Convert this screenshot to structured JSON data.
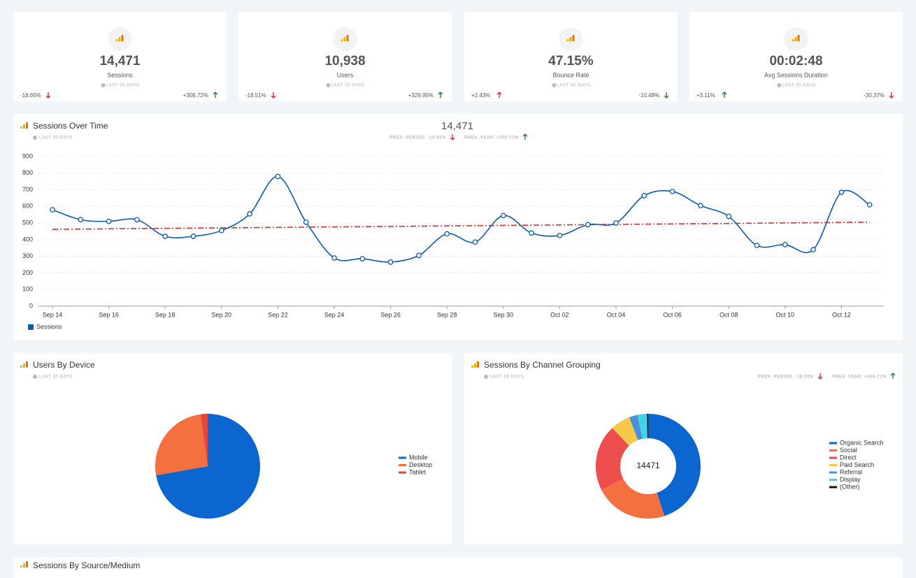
{
  "cards": [
    {
      "value": "14,471",
      "label": "Sessions",
      "period": "LAST 30 DAYS",
      "left": {
        "text": "-18.65%",
        "arrow": "down",
        "color": "#d32f2f"
      },
      "right": {
        "text": "+306.72%",
        "arrow": "up",
        "color": "#2e7d32"
      }
    },
    {
      "value": "10,938",
      "label": "Users",
      "period": "LAST 30 DAYS",
      "left": {
        "text": "-18.51%",
        "arrow": "down",
        "color": "#d32f2f"
      },
      "right": {
        "text": "+329.95%",
        "arrow": "up",
        "color": "#2e7d32"
      }
    },
    {
      "value": "47.15%",
      "label": "Bounce Rate",
      "period": "LAST 30 DAYS",
      "left": {
        "text": "+2.43%",
        "arrow": "up",
        "color": "#d32f2f"
      },
      "right": {
        "text": "-10.48%",
        "arrow": "down",
        "color": "#2e7d32"
      }
    },
    {
      "value": "00:02:48",
      "label": "Avg Sessions Duration",
      "period": "LAST 30 DAYS",
      "left": {
        "text": "+3.11%",
        "arrow": "up",
        "color": "#2e7d32"
      },
      "right": {
        "text": "-30.37%",
        "arrow": "down",
        "color": "#d32f2f"
      }
    }
  ],
  "chart_data": [
    {
      "type": "line",
      "title": "Sessions Over Time",
      "subtitle": "LAST 30 DAYS",
      "total": "14,471",
      "stats": [
        {
          "text": "PREV. PERIOD: -18.65%",
          "arrow": "down",
          "color": "#d32f2f"
        },
        {
          "text": "PREV. YEAR: +306.72%",
          "arrow": "up",
          "color": "#2e7d32"
        }
      ],
      "categories": [
        "Sep 14",
        null,
        "Sep 16",
        null,
        "Sep 18",
        null,
        "Sep 20",
        null,
        "Sep 22",
        null,
        "Sep 24",
        null,
        "Sep 26",
        null,
        "Sep 28",
        null,
        "Sep 30",
        null,
        "Oct 02",
        null,
        "Oct 04",
        null,
        "Oct 06",
        null,
        "Oct 08",
        null,
        "Oct 10",
        null,
        "Oct 12",
        null
      ],
      "series": [
        {
          "name": "Sessions",
          "color": "#0b5cad",
          "values": [
            580,
            520,
            510,
            520,
            420,
            420,
            455,
            555,
            780,
            505,
            290,
            285,
            265,
            305,
            435,
            385,
            545,
            440,
            425,
            490,
            500,
            665,
            690,
            605,
            540,
            365,
            370,
            340,
            685,
            610
          ]
        }
      ],
      "trendline": {
        "values": [
          462,
          505
        ],
        "color": "#d32f2f"
      },
      "ylim": [
        0,
        900
      ],
      "yticks": [
        0,
        100,
        200,
        300,
        400,
        500,
        600,
        700,
        800,
        900
      ],
      "grid": true
    },
    {
      "type": "pie",
      "title": "Users By Device",
      "subtitle": "LAST 30 DAYS",
      "categories": [
        "Mobile",
        "Desktop",
        "Tablet"
      ],
      "values": [
        72.2,
        25.6,
        2.2
      ],
      "colors": [
        "#0b66d0",
        "#f4703f",
        "#e8453c"
      ]
    },
    {
      "type": "donut",
      "title": "Sessions By Channel Grouping",
      "subtitle": "LAST 30 DAYS",
      "center_label": "14471",
      "stats": [
        {
          "text": "PREV. PERIOD: -18.65%",
          "arrow": "down",
          "color": "#d32f2f"
        },
        {
          "text": "PREV. YEAR: +306.72%",
          "arrow": "up",
          "color": "#2e7d32"
        }
      ],
      "categories": [
        "Organic Search",
        "Social",
        "Direct",
        "Paid Search",
        "Referral",
        "Display",
        "(Other)"
      ],
      "values": [
        45,
        22.5,
        20.5,
        6.1,
        2.6,
        2.9,
        0.4
      ],
      "colors": [
        "#0b66d0",
        "#f4703f",
        "#ee4d4d",
        "#f7c948",
        "#4a90d9",
        "#3fd5e8",
        "#111111"
      ]
    }
  ],
  "footer_card": {
    "title": "Sessions By Source/Medium"
  }
}
